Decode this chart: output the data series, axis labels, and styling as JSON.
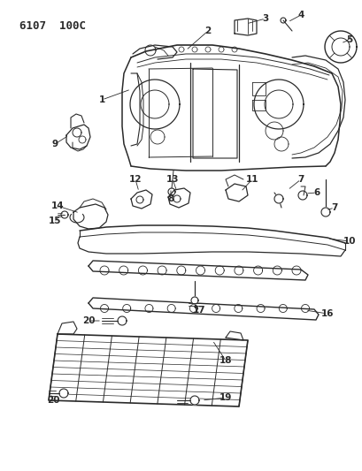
{
  "title": "6107 100C",
  "bg_color": "#ffffff",
  "line_color": "#2a2a2a",
  "fig_width": 4.1,
  "fig_height": 5.33,
  "dpi": 100
}
